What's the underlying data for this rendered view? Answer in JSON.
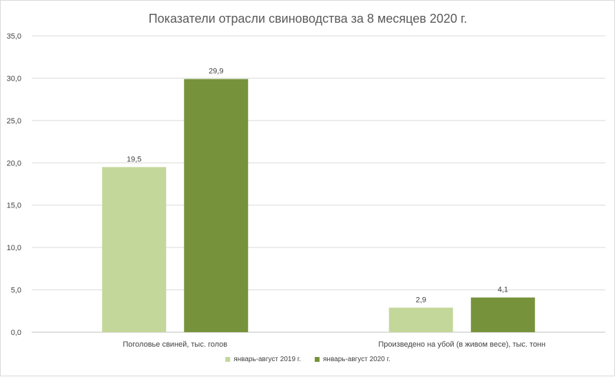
{
  "chart_data": {
    "type": "bar",
    "title": "Показатели отрасли свиноводства за 8 месяцев 2020 г.",
    "xlabel": "",
    "ylabel": "",
    "categories": [
      "Поголовье свиней, тыс. голов",
      "Произведено на убой (в живом весе), тыс. тонн"
    ],
    "series": [
      {
        "name": "январь-август 2019 г.",
        "values": [
          19.5,
          2.9
        ],
        "labels": [
          "19,5",
          "2,9"
        ],
        "color": "#c4d79b"
      },
      {
        "name": "январь-август 2020 г.",
        "values": [
          29.9,
          4.1
        ],
        "labels": [
          "29,9",
          "4,1"
        ],
        "color": "#76933c"
      }
    ],
    "ylim": [
      0,
      35
    ],
    "yticks": [
      0,
      5,
      10,
      15,
      20,
      25,
      30,
      35
    ],
    "ytick_labels": [
      "0,0",
      "5,0",
      "10,0",
      "15,0",
      "20,0",
      "25,0",
      "30,0",
      "35,0"
    ],
    "grid": true,
    "legend_position": "bottom",
    "gridline_color": "#d9d9d9",
    "axis_line_color": "#bfbfbf"
  }
}
